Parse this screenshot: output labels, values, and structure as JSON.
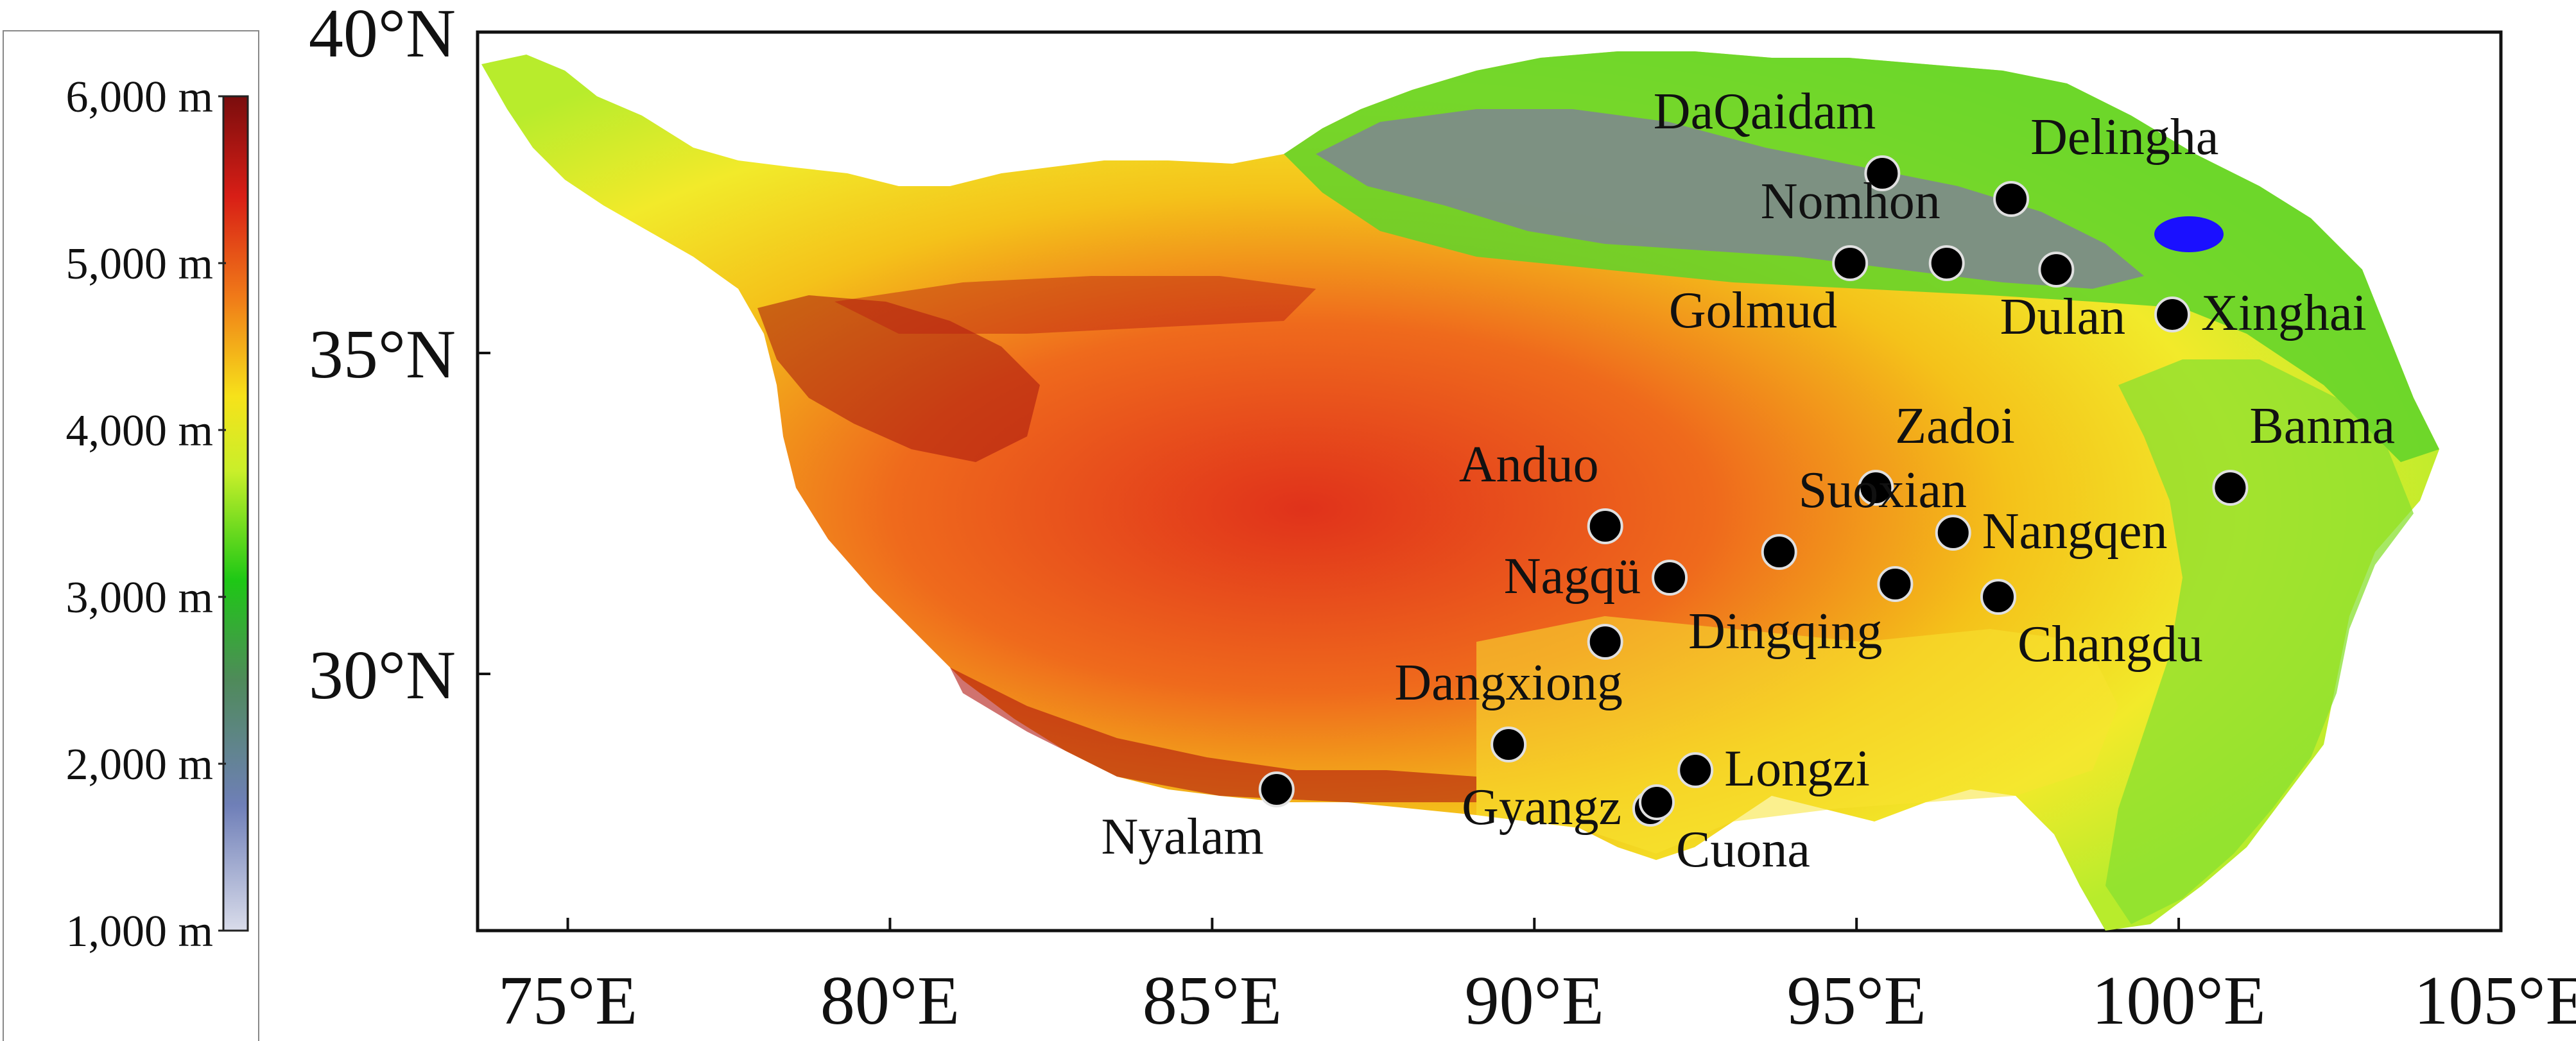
{
  "legend": {
    "ticks": [
      "6,000 m",
      "5,000 m",
      "4,000 m",
      "3,000 m",
      "2,000 m",
      "1,000 m"
    ],
    "colors": [
      "#7a0d0d",
      "#d81e16",
      "#f07a18",
      "#f6e21a",
      "#c9ef2a",
      "#1ec815",
      "#4f8a5a",
      "#6f7fb8",
      "#d9dcea"
    ]
  },
  "axes": {
    "lon_labels": [
      "75°E",
      "80°E",
      "85°E",
      "90°E",
      "95°E",
      "100°E",
      "105°E"
    ],
    "lon_values": [
      75,
      80,
      85,
      90,
      95,
      100,
      105
    ],
    "lat_labels": [
      "30°N",
      "35°N",
      "40°N"
    ],
    "lat_values": [
      30,
      35,
      40
    ],
    "lon_range": [
      73.6,
      105
    ],
    "lat_range": [
      26,
      40
    ]
  },
  "stations": [
    {
      "name": "DaQaidam",
      "lon": 95.4,
      "lat": 37.8,
      "label_pos": "above-left"
    },
    {
      "name": "Delingha",
      "lon": 97.4,
      "lat": 37.4,
      "label_pos": "above-right"
    },
    {
      "name": "Nomhon",
      "lon": 96.4,
      "lat": 36.4,
      "label_pos": "above-left"
    },
    {
      "name": "Golmud",
      "lon": 94.9,
      "lat": 36.4,
      "label_pos": "below-left"
    },
    {
      "name": "Dulan",
      "lon": 98.1,
      "lat": 36.3,
      "label_pos": "below"
    },
    {
      "name": "Xinghai",
      "lon": 99.9,
      "lat": 35.6,
      "label_pos": "right"
    },
    {
      "name": "Zadoi",
      "lon": 95.3,
      "lat": 32.9,
      "label_pos": "above-right"
    },
    {
      "name": "Banma",
      "lon": 100.8,
      "lat": 32.9,
      "label_pos": "above-right"
    },
    {
      "name": "Anduo",
      "lon": 91.1,
      "lat": 32.3,
      "label_pos": "above-left"
    },
    {
      "name": "Suoxian",
      "lon": 93.8,
      "lat": 31.9,
      "label_pos": "above-right"
    },
    {
      "name": "Nangqen",
      "lon": 96.5,
      "lat": 32.2,
      "label_pos": "right"
    },
    {
      "name": "Nagqü",
      "lon": 92.1,
      "lat": 31.5,
      "label_pos": "left"
    },
    {
      "name": "Dingqing",
      "lon": 95.6,
      "lat": 31.4,
      "label_pos": "below-left"
    },
    {
      "name": "Changdu",
      "lon": 97.2,
      "lat": 31.2,
      "label_pos": "below-right"
    },
    {
      "name": "",
      "lon": 91.1,
      "lat": 30.5,
      "label_pos": "none"
    },
    {
      "name": "Dangxiong",
      "lon": 89.6,
      "lat": 28.9,
      "label_pos": "above"
    },
    {
      "name": "Longzi",
      "lon": 92.5,
      "lat": 28.5,
      "label_pos": "right"
    },
    {
      "name": "Gyangz",
      "lon": 91.8,
      "lat": 27.9,
      "label_pos": "left"
    },
    {
      "name": "Cuona",
      "lon": 91.9,
      "lat": 28.0,
      "label_pos": "below-right"
    },
    {
      "name": "Nyalam",
      "lon": 86.0,
      "lat": 28.2,
      "label_pos": "below-left"
    }
  ],
  "lake_color": "#1a10ff"
}
